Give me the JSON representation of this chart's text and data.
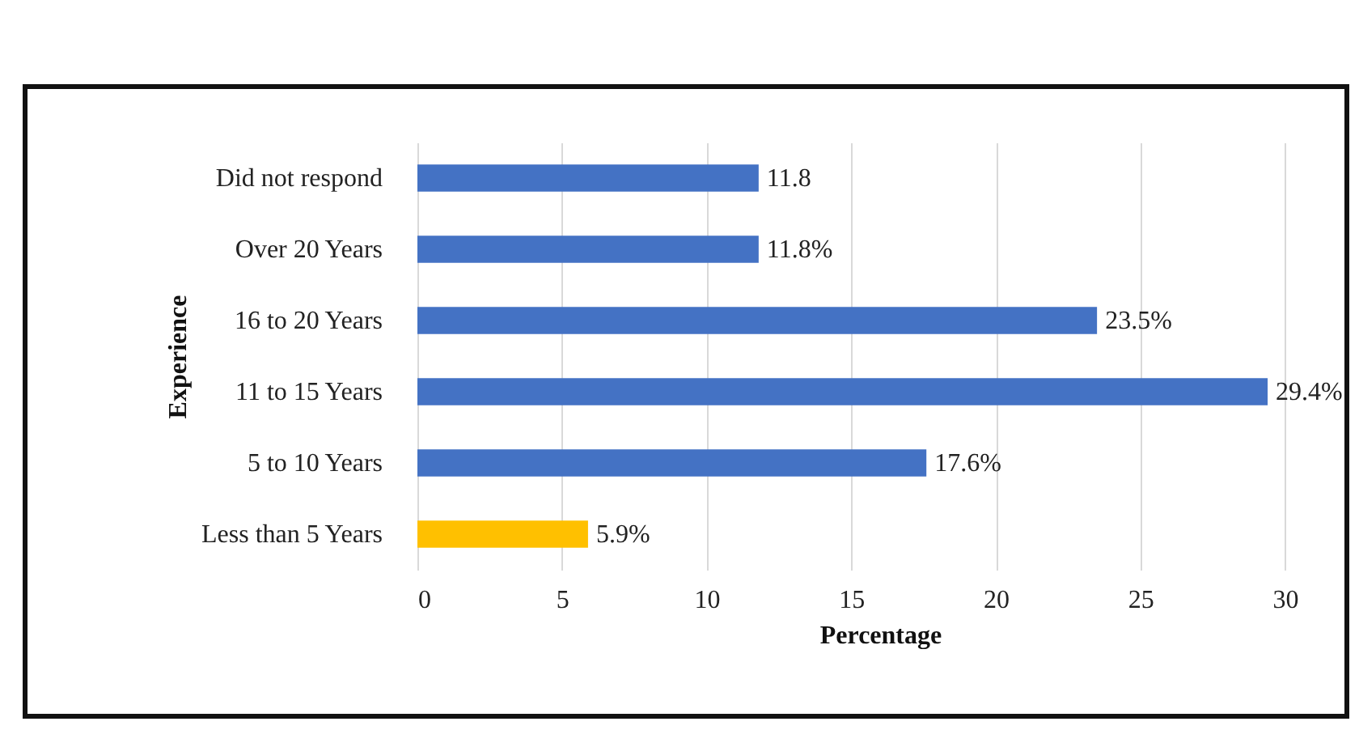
{
  "chart_data": {
    "type": "bar",
    "orientation": "horizontal",
    "xlabel": "Percentage",
    "ylabel": "Experience",
    "categories": [
      "Did not respond",
      "Over 20 Years",
      "16 to 20 Years",
      "11 to 15 Years",
      "5 to 10 Years",
      "Less than 5 Years"
    ],
    "values": [
      11.8,
      11.8,
      23.5,
      29.4,
      17.6,
      5.9
    ],
    "colors": [
      "#4472c4",
      "#4472c4",
      "#4472c4",
      "#4472c4",
      "#4472c4",
      "#ffc000"
    ],
    "value_labels": [
      "11.8",
      "11.8%",
      "23.5%",
      "29.4%",
      "17.6%",
      "5.9%"
    ],
    "xlim": [
      0,
      32
    ],
    "xticks": [
      0,
      5,
      10,
      15,
      20,
      25,
      30
    ],
    "grid": "x"
  }
}
